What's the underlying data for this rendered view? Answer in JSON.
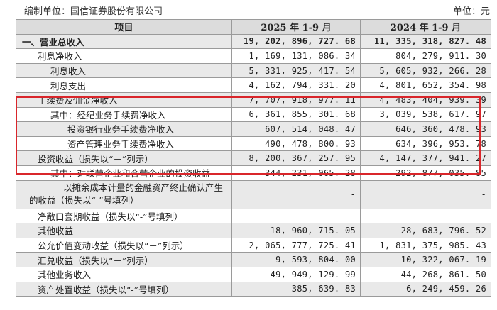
{
  "header": {
    "org": "编制单位：国信证券股份有限公司",
    "unit": "单位：元"
  },
  "columns": {
    "item": "项目",
    "current": "2025 年 1-9 月",
    "prior": "2024 年 1-9 月"
  },
  "rows": [
    {
      "label": "一、营业总收入",
      "current": "19, 202, 896, 727. 68",
      "prior": "11, 335, 318, 827. 48"
    },
    {
      "label": "利息净收入",
      "current": "1, 169, 131, 086. 34",
      "prior": "804, 279, 911. 30"
    },
    {
      "label": "利息收入",
      "current": "5, 331, 925, 417. 54",
      "prior": "5, 605, 932, 266. 28"
    },
    {
      "label": "利息支出",
      "current": "4, 162, 794, 331. 20",
      "prior": "4, 801, 652, 354. 98"
    },
    {
      "label": "手续费及佣金净收入",
      "current": "7, 707, 918, 977. 11",
      "prior": "4, 483, 404, 939. 39"
    },
    {
      "label": "其中：经纪业务手续费净收入",
      "current": "6, 361, 855, 301. 68",
      "prior": "3, 039, 538, 617. 97"
    },
    {
      "label": "投资银行业务手续费净收入",
      "current": "607, 514, 048. 47",
      "prior": "646, 360, 478. 93"
    },
    {
      "label": "资产管理业务手续费净收入",
      "current": "490, 478, 800. 93",
      "prior": "634, 396, 953. 78"
    },
    {
      "label": "投资收益（损失以“－”列示）",
      "current": "8, 200, 367, 257. 95",
      "prior": "4, 147, 377, 941. 27"
    },
    {
      "label": "其中：对联营企业和合营企业的投资收益",
      "current": "344, 231, 065. 28",
      "prior": "292, 877, 035. 85"
    },
    {
      "label": "以摊余成本计量的金融资产终止确认产生的收益（损失以“-”号填列）",
      "current": "-",
      "prior": "-"
    },
    {
      "label": "净敞口套期收益（损失以“-”号填列）",
      "current": "-",
      "prior": "-"
    },
    {
      "label": "其他收益",
      "current": "18, 960, 715. 05",
      "prior": "28, 683, 796. 52"
    },
    {
      "label": "公允价值变动收益（损失以“－”列示）",
      "current": "2, 065, 777, 725. 41",
      "prior": "1, 831, 375, 985. 43"
    },
    {
      "label": "汇兑收益（损失以“－”列示）",
      "current": "-9, 593, 804. 00",
      "prior": "-10, 322, 067. 19"
    },
    {
      "label": "其他业务收入",
      "current": "49, 949, 129. 99",
      "prior": "44, 268, 861. 50"
    },
    {
      "label": "资产处置收益（损失以“-”号填列）",
      "current": "385, 639. 83",
      "prior": "6, 249, 459. 26"
    }
  ]
}
